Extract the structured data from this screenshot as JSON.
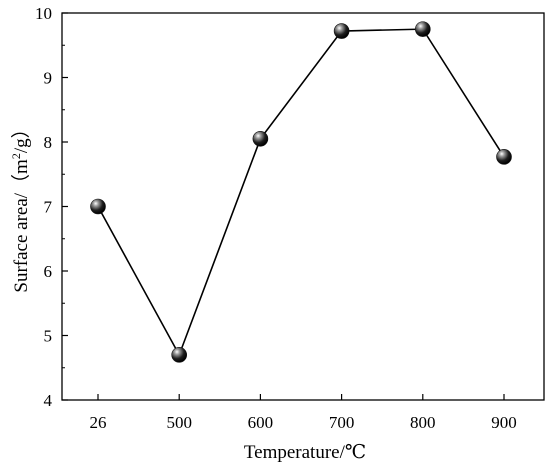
{
  "chart_data": {
    "type": "line",
    "title": "",
    "xlabel": "Temperature/℃",
    "ylabel_prefix": "Surface area/（m",
    "ylabel_sup": "2",
    "ylabel_suffix": "/g）",
    "categories": [
      "26",
      "500",
      "600",
      "700",
      "800",
      "900"
    ],
    "series": [
      {
        "values": [
          7.0,
          4.7,
          8.05,
          9.72,
          9.75,
          7.77
        ]
      }
    ],
    "ylim": [
      4,
      10
    ],
    "yticks": [
      "4",
      "5",
      "6",
      "7",
      "8",
      "9",
      "10"
    ],
    "grid": false,
    "legend": "none",
    "colors": {
      "line": "#000000",
      "marker": "#111111",
      "axis": "#000000"
    }
  }
}
